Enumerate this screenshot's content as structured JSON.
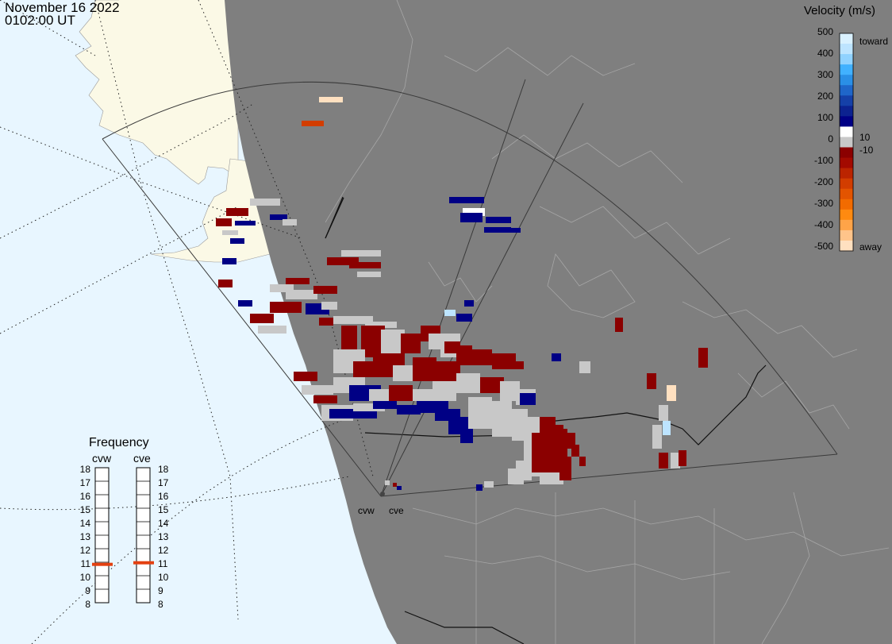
{
  "title": {
    "date": "November 16 2022",
    "time": "0102:00 UT"
  },
  "colorbar": {
    "title": "Velocity (m/s)",
    "ticks": [
      "500",
      "400",
      "300",
      "200",
      "100",
      "0",
      "-100",
      "-200",
      "-300",
      "-400",
      "-500"
    ],
    "upper_label": "toward",
    "lower_label": "away",
    "inner_pos": "10",
    "inner_neg": "-10",
    "colors": [
      "#d9f1ff",
      "#bde4ff",
      "#90d2ff",
      "#41b1ff",
      "#2a8fe6",
      "#1f66c9",
      "#1540a8",
      "#0c2290",
      "#000085",
      "#ffffff",
      "#c8c8c8",
      "#8b0000",
      "#a30a00",
      "#bb2400",
      "#d23d00",
      "#e35400",
      "#f26b00",
      "#ff8a10",
      "#ffa448",
      "#ffc48a",
      "#ffe0c0"
    ]
  },
  "frequency": {
    "title": "Frequency",
    "radars": [
      "cvw",
      "cve"
    ],
    "labels": [
      "18",
      "17",
      "16",
      "15",
      "14",
      "13",
      "12",
      "11",
      "10",
      "9",
      "8"
    ],
    "cvw_mhz": 10.9,
    "cve_mhz": 10.9
  },
  "sites": [
    "cvw",
    "cve"
  ],
  "colors": {
    "ocean": "#e8f6ff",
    "land": "#fbf9e6",
    "night_shade": "#7f7f7f",
    "boundaries": "#a6a6a6",
    "grid": "#000000",
    "low_velocity": "#c8c8c8",
    "marker": "#e34010"
  }
}
